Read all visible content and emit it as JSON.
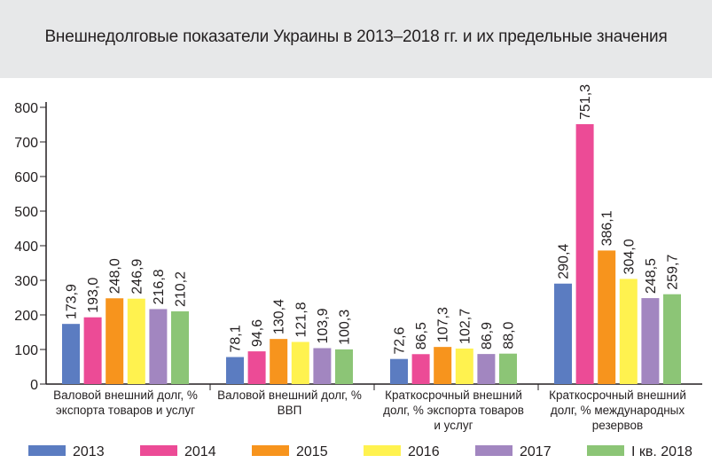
{
  "header": {
    "title": "Внешнедолговые показатели Украины в 2013–2018 гг. и их предельные значения"
  },
  "chart_data": {
    "type": "bar",
    "title": "Внешнедолговые показатели Украины в 2013–2018 гг. и их предельные значения",
    "ylim": [
      0,
      800
    ],
    "yticks": [
      "0",
      "100",
      "200",
      "300",
      "400",
      "500",
      "600",
      "700",
      "800"
    ],
    "grid": false,
    "legend_position": "bottom",
    "categories": [
      [
        "Валовой внешний долг, %",
        "экспорта товаров и услуг"
      ],
      [
        "Валовой внешний долг, %",
        "ВВП"
      ],
      [
        "Краткосрочный внешний",
        "долг, % экспорта товаров",
        "и услуг"
      ],
      [
        "Краткосрочный внешний",
        "долг, % международных",
        "резервов"
      ]
    ],
    "series": [
      {
        "name": "2013",
        "color": "#5b7cc1",
        "values": [
          173.9,
          78.1,
          72.6,
          290.4
        ],
        "labels": [
          "173,9",
          "78,1",
          "72,6",
          "290,4"
        ]
      },
      {
        "name": "2014",
        "color": "#ec4b96",
        "values": [
          193.0,
          94.6,
          86.5,
          751.3
        ],
        "labels": [
          "193,0",
          "94,6",
          "86,5",
          "751,3"
        ]
      },
      {
        "name": "2015",
        "color": "#f7941d",
        "values": [
          248.0,
          130.4,
          107.3,
          386.1
        ],
        "labels": [
          "248,0",
          "130,4",
          "107,3",
          "386,1"
        ]
      },
      {
        "name": "2016",
        "color": "#fff24f",
        "values": [
          246.9,
          121.8,
          102.7,
          304.0
        ],
        "labels": [
          "246,9",
          "121,8",
          "102,7",
          "304,0"
        ]
      },
      {
        "name": "2017",
        "color": "#a286c0",
        "values": [
          216.8,
          103.9,
          86.9,
          248.5
        ],
        "labels": [
          "216,8",
          "103,9",
          "86,9",
          "248,5"
        ]
      },
      {
        "name": "I кв. 2018",
        "color": "#8cc576",
        "values": [
          210.2,
          100.3,
          88.0,
          259.7
        ],
        "labels": [
          "210,2",
          "100,3",
          "88,0",
          "259,7"
        ]
      }
    ]
  }
}
